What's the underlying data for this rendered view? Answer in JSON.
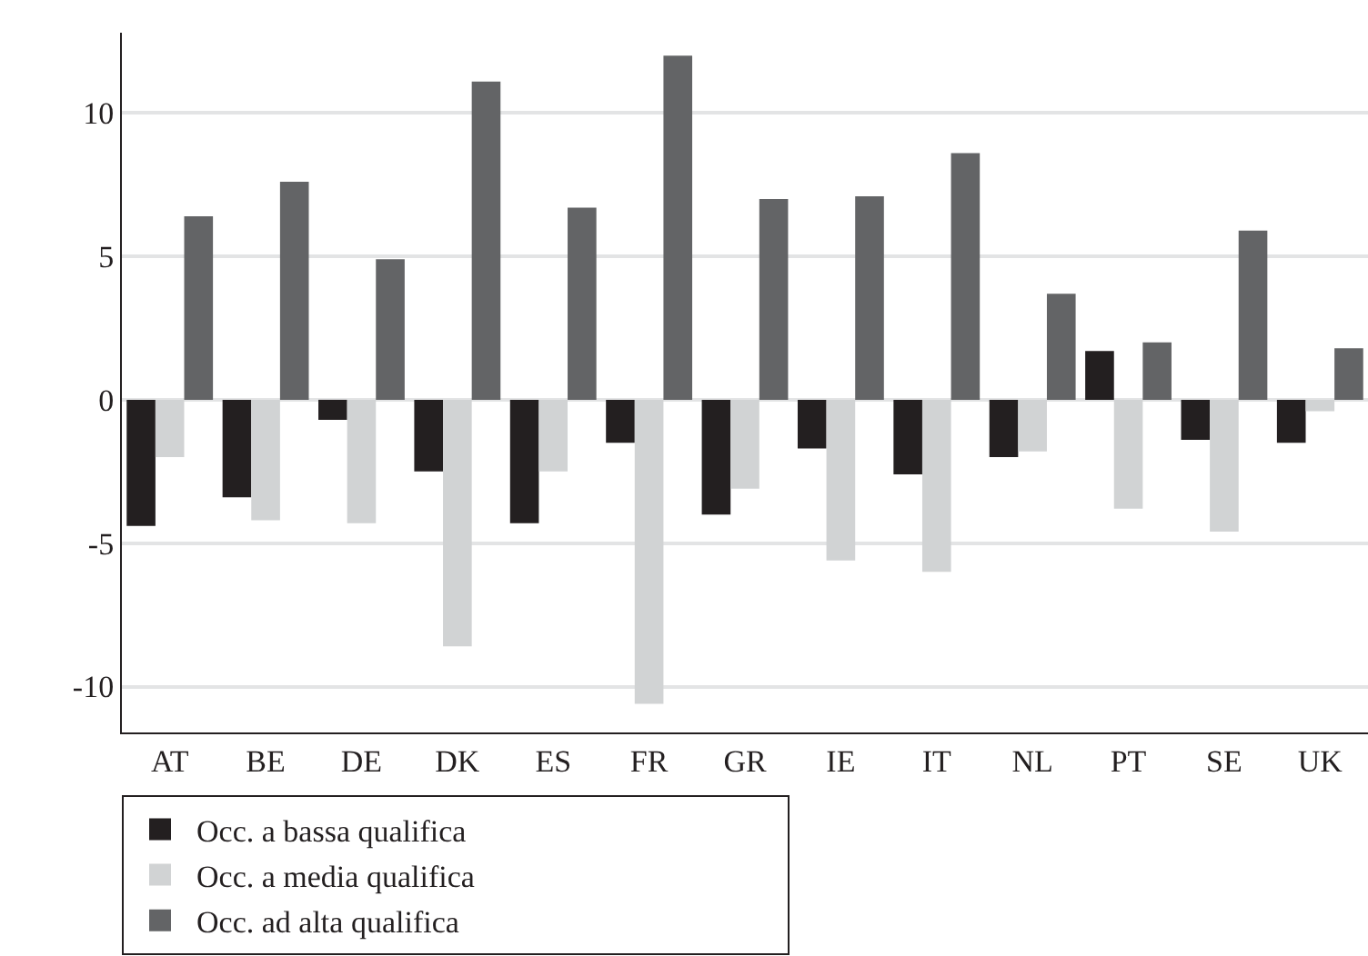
{
  "chart_data": {
    "type": "bar",
    "categories": [
      "AT",
      "BE",
      "DE",
      "DK",
      "ES",
      "FR",
      "GR",
      "IE",
      "IT",
      "NL",
      "PT",
      "SE",
      "UK"
    ],
    "series": [
      {
        "name": "Occ. a bassa qualifica",
        "color": "#231f20",
        "values": [
          -4.4,
          -3.4,
          -0.7,
          -2.5,
          -4.3,
          -1.5,
          -4.0,
          -1.7,
          -2.6,
          -2.0,
          1.7,
          -1.4,
          -1.5
        ]
      },
      {
        "name": "Occ. a media qualifica",
        "color": "#d1d3d4",
        "values": [
          -2.0,
          -4.2,
          -4.3,
          -8.6,
          -2.5,
          -10.6,
          -3.1,
          -5.6,
          -6.0,
          -1.8,
          -3.8,
          -4.6,
          -0.4
        ]
      },
      {
        "name": "Occ. ad alta qualifica",
        "color": "#636466",
        "values": [
          6.4,
          7.6,
          4.9,
          11.1,
          6.7,
          12.0,
          7.0,
          7.1,
          8.6,
          3.7,
          2.0,
          5.9,
          1.8
        ]
      }
    ],
    "ylim": [
      -11.6,
      12.8
    ],
    "yticks": [
      {
        "value": -10,
        "label": "-10"
      },
      {
        "value": -5,
        "label": "-5"
      },
      0,
      5,
      10
    ],
    "grid": "y",
    "legend": "bottom"
  }
}
